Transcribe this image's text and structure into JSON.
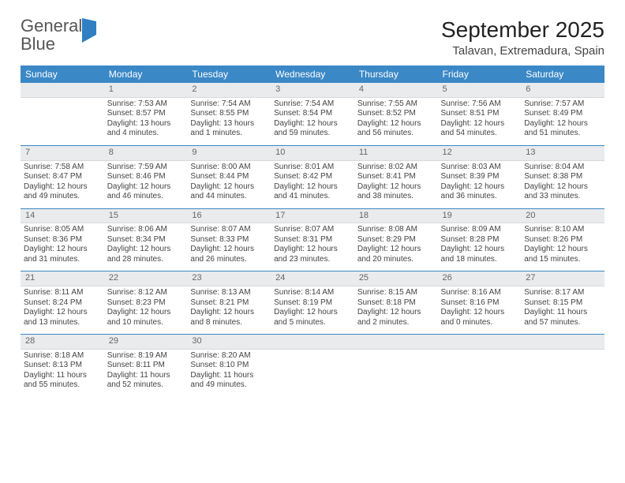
{
  "logo": {
    "word1": "General",
    "word2": "Blue"
  },
  "title": "September 2025",
  "location": "Talavan, Extremadura, Spain",
  "colors": {
    "header_bg": "#3b88c6",
    "header_text": "#ffffff",
    "daynum_bg": "#e9ebed",
    "separator": "#3b88c6",
    "text": "#444444",
    "logo_blue": "#2f7fc2"
  },
  "weekdays": [
    "Sunday",
    "Monday",
    "Tuesday",
    "Wednesday",
    "Thursday",
    "Friday",
    "Saturday"
  ],
  "weeks": [
    {
      "nums": [
        "",
        "1",
        "2",
        "3",
        "4",
        "5",
        "6"
      ],
      "cells": [
        [],
        [
          "Sunrise: 7:53 AM",
          "Sunset: 8:57 PM",
          "Daylight: 13 hours",
          "and 4 minutes."
        ],
        [
          "Sunrise: 7:54 AM",
          "Sunset: 8:55 PM",
          "Daylight: 13 hours",
          "and 1 minutes."
        ],
        [
          "Sunrise: 7:54 AM",
          "Sunset: 8:54 PM",
          "Daylight: 12 hours",
          "and 59 minutes."
        ],
        [
          "Sunrise: 7:55 AM",
          "Sunset: 8:52 PM",
          "Daylight: 12 hours",
          "and 56 minutes."
        ],
        [
          "Sunrise: 7:56 AM",
          "Sunset: 8:51 PM",
          "Daylight: 12 hours",
          "and 54 minutes."
        ],
        [
          "Sunrise: 7:57 AM",
          "Sunset: 8:49 PM",
          "Daylight: 12 hours",
          "and 51 minutes."
        ]
      ]
    },
    {
      "nums": [
        "7",
        "8",
        "9",
        "10",
        "11",
        "12",
        "13"
      ],
      "cells": [
        [
          "Sunrise: 7:58 AM",
          "Sunset: 8:47 PM",
          "Daylight: 12 hours",
          "and 49 minutes."
        ],
        [
          "Sunrise: 7:59 AM",
          "Sunset: 8:46 PM",
          "Daylight: 12 hours",
          "and 46 minutes."
        ],
        [
          "Sunrise: 8:00 AM",
          "Sunset: 8:44 PM",
          "Daylight: 12 hours",
          "and 44 minutes."
        ],
        [
          "Sunrise: 8:01 AM",
          "Sunset: 8:42 PM",
          "Daylight: 12 hours",
          "and 41 minutes."
        ],
        [
          "Sunrise: 8:02 AM",
          "Sunset: 8:41 PM",
          "Daylight: 12 hours",
          "and 38 minutes."
        ],
        [
          "Sunrise: 8:03 AM",
          "Sunset: 8:39 PM",
          "Daylight: 12 hours",
          "and 36 minutes."
        ],
        [
          "Sunrise: 8:04 AM",
          "Sunset: 8:38 PM",
          "Daylight: 12 hours",
          "and 33 minutes."
        ]
      ]
    },
    {
      "nums": [
        "14",
        "15",
        "16",
        "17",
        "18",
        "19",
        "20"
      ],
      "cells": [
        [
          "Sunrise: 8:05 AM",
          "Sunset: 8:36 PM",
          "Daylight: 12 hours",
          "and 31 minutes."
        ],
        [
          "Sunrise: 8:06 AM",
          "Sunset: 8:34 PM",
          "Daylight: 12 hours",
          "and 28 minutes."
        ],
        [
          "Sunrise: 8:07 AM",
          "Sunset: 8:33 PM",
          "Daylight: 12 hours",
          "and 26 minutes."
        ],
        [
          "Sunrise: 8:07 AM",
          "Sunset: 8:31 PM",
          "Daylight: 12 hours",
          "and 23 minutes."
        ],
        [
          "Sunrise: 8:08 AM",
          "Sunset: 8:29 PM",
          "Daylight: 12 hours",
          "and 20 minutes."
        ],
        [
          "Sunrise: 8:09 AM",
          "Sunset: 8:28 PM",
          "Daylight: 12 hours",
          "and 18 minutes."
        ],
        [
          "Sunrise: 8:10 AM",
          "Sunset: 8:26 PM",
          "Daylight: 12 hours",
          "and 15 minutes."
        ]
      ]
    },
    {
      "nums": [
        "21",
        "22",
        "23",
        "24",
        "25",
        "26",
        "27"
      ],
      "cells": [
        [
          "Sunrise: 8:11 AM",
          "Sunset: 8:24 PM",
          "Daylight: 12 hours",
          "and 13 minutes."
        ],
        [
          "Sunrise: 8:12 AM",
          "Sunset: 8:23 PM",
          "Daylight: 12 hours",
          "and 10 minutes."
        ],
        [
          "Sunrise: 8:13 AM",
          "Sunset: 8:21 PM",
          "Daylight: 12 hours",
          "and 8 minutes."
        ],
        [
          "Sunrise: 8:14 AM",
          "Sunset: 8:19 PM",
          "Daylight: 12 hours",
          "and 5 minutes."
        ],
        [
          "Sunrise: 8:15 AM",
          "Sunset: 8:18 PM",
          "Daylight: 12 hours",
          "and 2 minutes."
        ],
        [
          "Sunrise: 8:16 AM",
          "Sunset: 8:16 PM",
          "Daylight: 12 hours",
          "and 0 minutes."
        ],
        [
          "Sunrise: 8:17 AM",
          "Sunset: 8:15 PM",
          "Daylight: 11 hours",
          "and 57 minutes."
        ]
      ]
    },
    {
      "nums": [
        "28",
        "29",
        "30",
        "",
        "",
        "",
        ""
      ],
      "cells": [
        [
          "Sunrise: 8:18 AM",
          "Sunset: 8:13 PM",
          "Daylight: 11 hours",
          "and 55 minutes."
        ],
        [
          "Sunrise: 8:19 AM",
          "Sunset: 8:11 PM",
          "Daylight: 11 hours",
          "and 52 minutes."
        ],
        [
          "Sunrise: 8:20 AM",
          "Sunset: 8:10 PM",
          "Daylight: 11 hours",
          "and 49 minutes."
        ],
        [],
        [],
        [],
        []
      ]
    }
  ]
}
